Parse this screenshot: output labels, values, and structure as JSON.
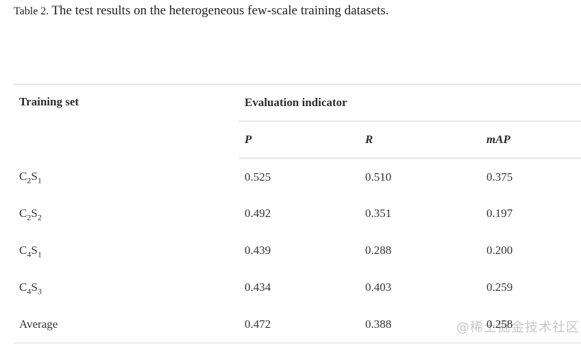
{
  "caption": {
    "label": "Table 2.",
    "text": "The test results on the heterogeneous few-scale training datasets."
  },
  "table": {
    "col1_header": "Training set",
    "group_header": "Evaluation indicator",
    "columns": [
      "P",
      "R",
      "mAP"
    ],
    "rows": [
      {
        "label_parts": [
          {
            "text": "C"
          },
          {
            "text": "2",
            "sub": true
          },
          {
            "text": "S"
          },
          {
            "text": "1",
            "sub": true
          }
        ],
        "values": [
          "0.525",
          "0.510",
          "0.375"
        ]
      },
      {
        "label_parts": [
          {
            "text": "C"
          },
          {
            "text": "2",
            "sub": true
          },
          {
            "text": "S"
          },
          {
            "text": "2",
            "sub": true
          }
        ],
        "values": [
          "0.492",
          "0.351",
          "0.197"
        ]
      },
      {
        "label_parts": [
          {
            "text": "C"
          },
          {
            "text": "4",
            "sub": true
          },
          {
            "text": "S"
          },
          {
            "text": "1",
            "sub": true
          }
        ],
        "values": [
          "0.439",
          "0.288",
          "0.200"
        ]
      },
      {
        "label_parts": [
          {
            "text": "C"
          },
          {
            "text": "4",
            "sub": true
          },
          {
            "text": "S"
          },
          {
            "text": "3",
            "sub": true
          }
        ],
        "values": [
          "0.434",
          "0.403",
          "0.259"
        ]
      },
      {
        "label_parts": [
          {
            "text": "Average"
          }
        ],
        "values": [
          "0.472",
          "0.388",
          "0.258"
        ]
      }
    ]
  },
  "watermark": {
    "text": "@稀土掘金技术社区",
    "color": "#c8c8c8"
  },
  "colors": {
    "border": "#e4e4e4",
    "caption_text": "#1f1f1f",
    "body_text": "#333333"
  }
}
